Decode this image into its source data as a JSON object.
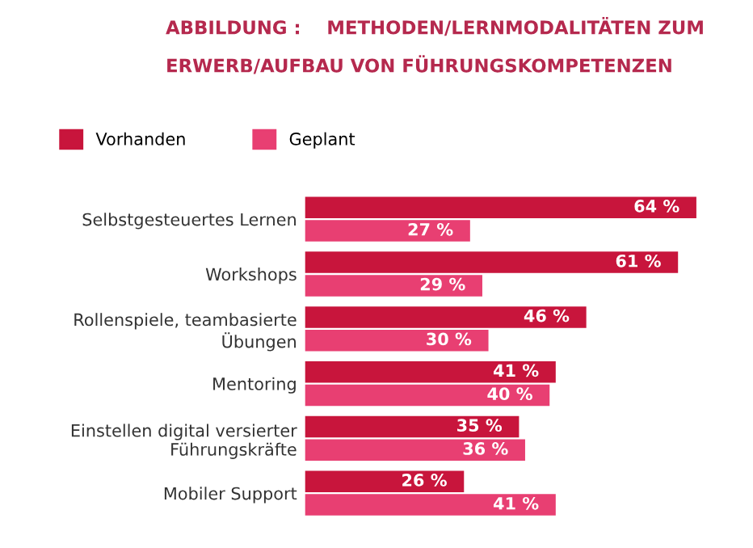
{
  "chart_data": {
    "type": "bar",
    "orientation": "horizontal",
    "title": "ABBILDUNG :    METHODEN/LERNMODALITÄTEN ZUM\nERWERB/AUFBAU VON FÜHRUNGSKOMPETENZEN",
    "categories": [
      "Selbstgesteuertes Lernen",
      "Workshops",
      "Rollenspiele, teambasierte\nÜbungen",
      "Mentoring",
      "Einstellen digital versierter\nFührungskräfte",
      "Mobiler Support"
    ],
    "series": [
      {
        "name": "Vorhanden",
        "color": "#c8153c",
        "values": [
          64,
          61,
          46,
          41,
          35,
          26
        ],
        "value_labels": [
          "64 %",
          "61 %",
          "46 %",
          "41 %",
          "35 %",
          "26 %"
        ]
      },
      {
        "name": "Geplant",
        "color": "#e83f72",
        "values": [
          27,
          29,
          30,
          40,
          36,
          41
        ],
        "value_labels": [
          "27 %",
          "29 %",
          "30 %",
          "40 %",
          "36 %",
          "41 %"
        ]
      }
    ],
    "legend": "top left",
    "grid": false,
    "tick_labels": "y"
  }
}
